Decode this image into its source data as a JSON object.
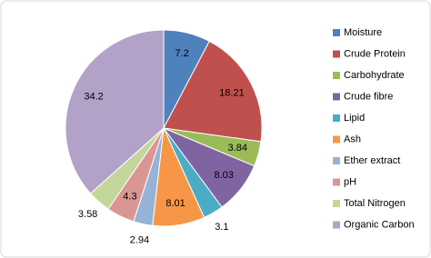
{
  "chart_data": {
    "type": "pie",
    "categories": [
      "Moisture",
      "Crude Protein",
      "Carbohydrate",
      "Crude fibre",
      "Lipid",
      "Ash",
      "Ether extract",
      "pH",
      "Total Nitrogen",
      "Organic Carbon"
    ],
    "values": [
      7.2,
      18.21,
      3.84,
      8.03,
      3.1,
      8.01,
      2.94,
      4.3,
      3.58,
      34.2
    ],
    "colors": [
      "#4F81BD",
      "#C0504D",
      "#9BBB59",
      "#8064A2",
      "#4BACC6",
      "#F79646",
      "#95B3D7",
      "#DA9694",
      "#C3D69B",
      "#B2A2C7"
    ],
    "legend": "right"
  }
}
